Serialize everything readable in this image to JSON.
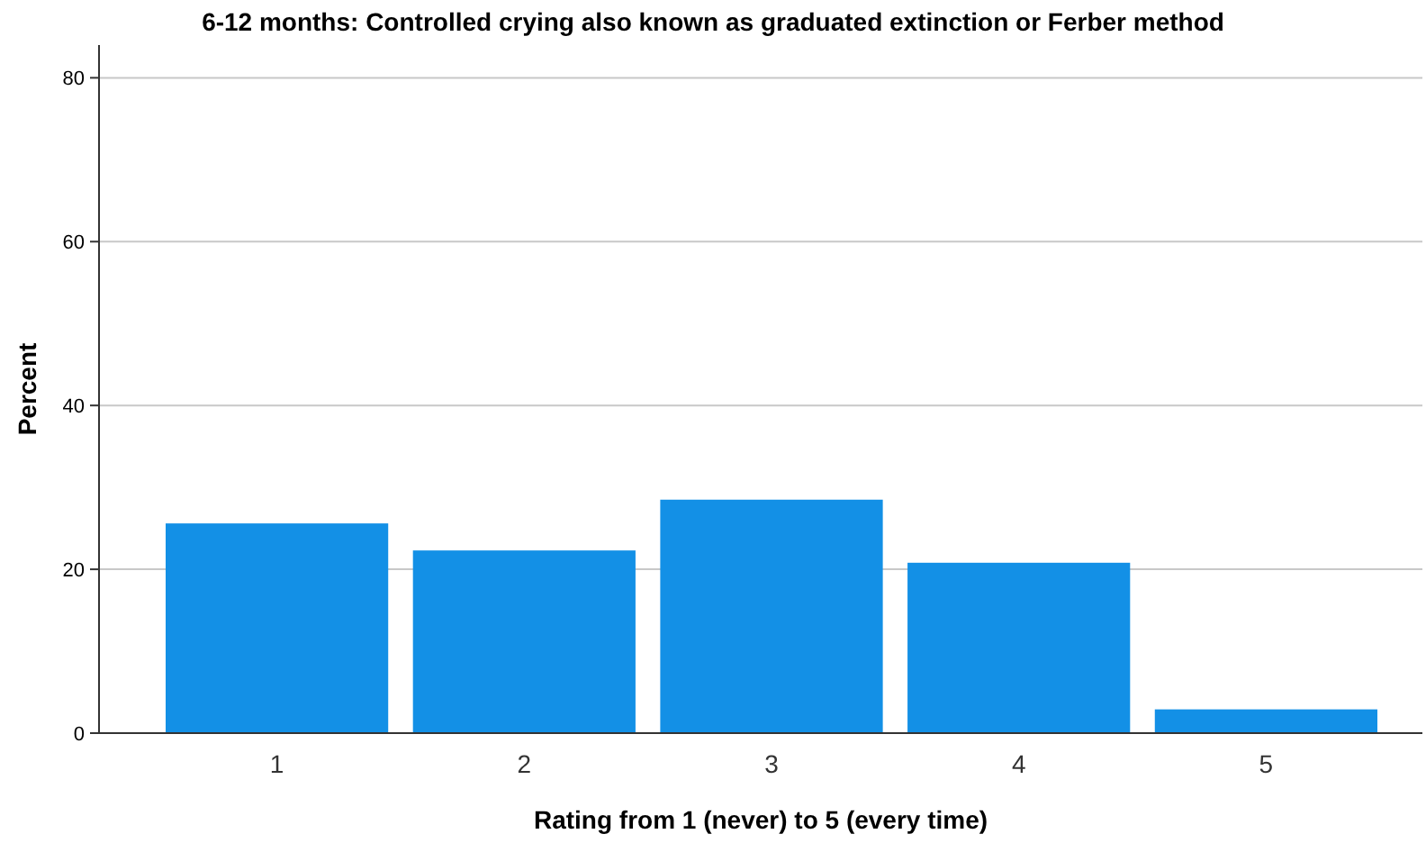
{
  "chart_data": {
    "type": "bar",
    "title": "6-12 months: Controlled crying also known as graduated extinction or Ferber method",
    "xlabel": "Rating from 1 (never) to 5 (every time)",
    "ylabel": "Percent",
    "categories": [
      "1",
      "2",
      "3",
      "4",
      "5"
    ],
    "values": [
      25.6,
      22.3,
      28.5,
      20.8,
      2.9
    ],
    "color": "#1390e6",
    "ylim": [
      0,
      84
    ],
    "yticks": [
      0,
      20,
      40,
      60,
      80
    ],
    "grid": "y"
  }
}
